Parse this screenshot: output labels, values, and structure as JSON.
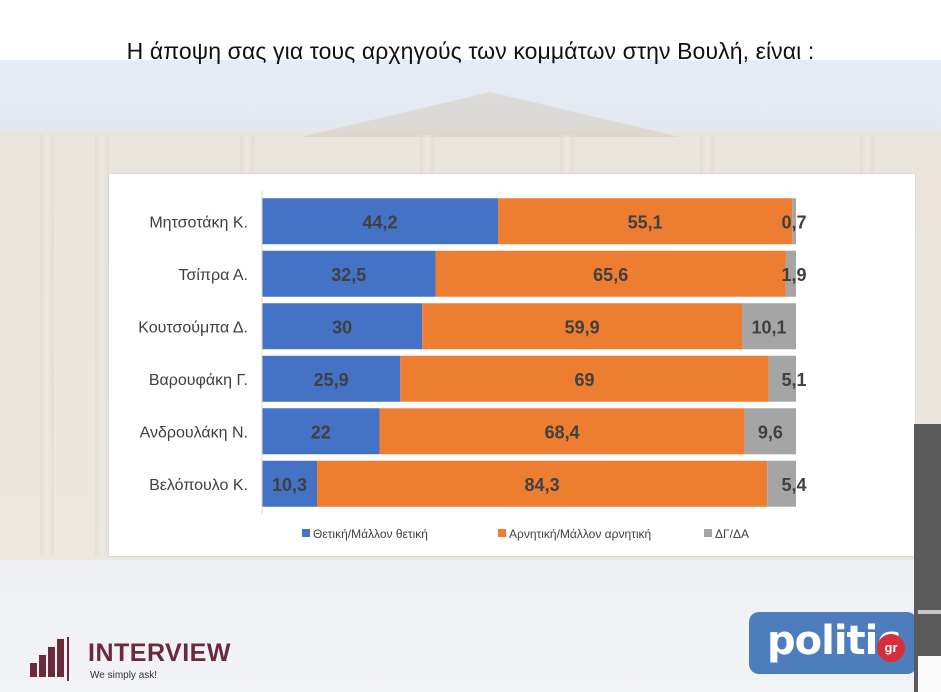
{
  "title": "Η άποψη σας για τους αρχηγούς των κομμάτων στην Βουλή,  είναι :",
  "chart_data": {
    "type": "bar",
    "orientation": "horizontal",
    "stacked": true,
    "categories": [
      "Μητσοτάκη Κ.",
      "Τσίπρα Α.",
      "Κουτσούμπα Δ.",
      "Βαρουφάκη Γ.",
      "Ανδρουλάκη Ν.",
      "Βελόπουλο Κ."
    ],
    "series": [
      {
        "name": "Θετική/Μάλλον θετική",
        "color": "#4472c4",
        "values": [
          44.2,
          32.5,
          30,
          25.9,
          22,
          10.3
        ],
        "labels": [
          "44,2",
          "32,5",
          "30",
          "25,9",
          "22",
          "10,3"
        ]
      },
      {
        "name": "Αρνητική/Μάλλον αρνητική",
        "color": "#ed7d31",
        "values": [
          55.1,
          65.6,
          59.9,
          69,
          68.4,
          84.3
        ],
        "labels": [
          "55,1",
          "65,6",
          "59,9",
          "69",
          "68,4",
          "84,3"
        ]
      },
      {
        "name": "ΔΓ/ΔΑ",
        "color": "#a5a5a5",
        "values": [
          0.7,
          1.9,
          10.1,
          5.1,
          9.6,
          5.4
        ],
        "labels": [
          "0,7",
          "1,9",
          "10,1",
          "5,1",
          "9,6",
          "5,4"
        ]
      }
    ],
    "xlim": [
      0,
      100
    ],
    "grid": false,
    "legend_position": "bottom"
  },
  "logos": {
    "interview_word": "INTERVIEW",
    "interview_tag": "We simply ask!",
    "politic_word": "politic",
    "politic_gr": "gr",
    "brand_color": "#6b2a3a",
    "politic_color": "#4d7dbc"
  }
}
